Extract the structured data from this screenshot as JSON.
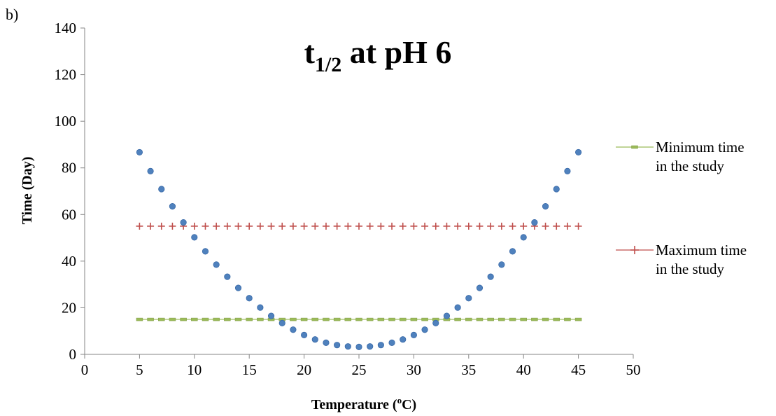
{
  "panel_label": "b)",
  "chart_data": {
    "type": "scatter",
    "title": {
      "main": "t",
      "subscript": "1/2",
      "rest": " at pH 6"
    },
    "xlabel": "Temperature (",
    "xlabel_sup": "o",
    "xlabel_end": "C)",
    "ylabel": "Time (Day)",
    "xlim": [
      0,
      50
    ],
    "ylim": [
      0,
      140
    ],
    "x_ticks": [
      0,
      5,
      10,
      15,
      20,
      25,
      30,
      35,
      40,
      45,
      50
    ],
    "y_ticks": [
      0,
      20,
      40,
      60,
      80,
      100,
      120,
      140
    ],
    "grid": false,
    "legend_position": "right",
    "series": [
      {
        "name": "",
        "marker": "circle",
        "color": "#4F81BD",
        "x": [
          5,
          6,
          7,
          8,
          9,
          10,
          11,
          12,
          13,
          14,
          15,
          16,
          17,
          18,
          19,
          20,
          21,
          22,
          23,
          24,
          25,
          26,
          27,
          28,
          29,
          30,
          31,
          32,
          33,
          34,
          35,
          36,
          37,
          38,
          39,
          40,
          41,
          42,
          43,
          44,
          45
        ],
        "y": [
          86.7,
          78.6,
          70.9,
          63.5,
          56.6,
          50.2,
          44.2,
          38.5,
          33.3,
          28.5,
          24.1,
          20.1,
          16.5,
          13.4,
          10.6,
          8.3,
          6.4,
          5.0,
          4.0,
          3.4,
          3.2,
          3.4,
          4.0,
          5.0,
          6.4,
          8.3,
          10.6,
          13.4,
          16.5,
          20.1,
          24.1,
          28.5,
          33.3,
          38.5,
          44.2,
          50.2,
          56.6,
          63.5,
          70.9,
          78.6,
          86.7
        ]
      },
      {
        "name": "Maximum time in the study",
        "legend_lines": [
          "Maximum time",
          "in the study"
        ],
        "marker": "plus",
        "color": "#C0504D",
        "x": [
          5,
          6,
          7,
          8,
          9,
          10,
          11,
          12,
          13,
          14,
          15,
          16,
          17,
          18,
          19,
          20,
          21,
          22,
          23,
          24,
          25,
          26,
          27,
          28,
          29,
          30,
          31,
          32,
          33,
          34,
          35,
          36,
          37,
          38,
          39,
          40,
          41,
          42,
          43,
          44,
          45
        ],
        "y": [
          55,
          55,
          55,
          55,
          55,
          55,
          55,
          55,
          55,
          55,
          55,
          55,
          55,
          55,
          55,
          55,
          55,
          55,
          55,
          55,
          55,
          55,
          55,
          55,
          55,
          55,
          55,
          55,
          55,
          55,
          55,
          55,
          55,
          55,
          55,
          55,
          55,
          55,
          55,
          55,
          55
        ]
      },
      {
        "name": "Minimum time in the study",
        "legend_lines": [
          "Minimum time",
          "in the study"
        ],
        "marker": "dash",
        "color": "#9BBB59",
        "x": [
          5,
          6,
          7,
          8,
          9,
          10,
          11,
          12,
          13,
          14,
          15,
          16,
          17,
          18,
          19,
          20,
          21,
          22,
          23,
          24,
          25,
          26,
          27,
          28,
          29,
          30,
          31,
          32,
          33,
          34,
          35,
          36,
          37,
          38,
          39,
          40,
          41,
          42,
          43,
          44,
          45
        ],
        "y": [
          15,
          15,
          15,
          15,
          15,
          15,
          15,
          15,
          15,
          15,
          15,
          15,
          15,
          15,
          15,
          15,
          15,
          15,
          15,
          15,
          15,
          15,
          15,
          15,
          15,
          15,
          15,
          15,
          15,
          15,
          15,
          15,
          15,
          15,
          15,
          15,
          15,
          15,
          15,
          15,
          15
        ]
      }
    ],
    "legend_order": [
      "Minimum time in the study",
      "Maximum time in the study"
    ]
  }
}
